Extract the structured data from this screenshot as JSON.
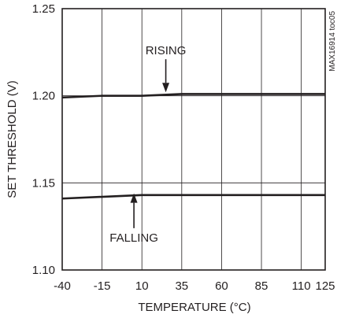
{
  "chart_data": {
    "type": "line",
    "xlabel": "TEMPERATURE (°C)",
    "ylabel": "SET THRESHOLD (V)",
    "xlim": [
      -40,
      125
    ],
    "ylim": [
      1.1,
      1.25
    ],
    "x_ticks": [
      "-40",
      "-15",
      "10",
      "35",
      "60",
      "85",
      "110",
      "125"
    ],
    "y_ticks": [
      "1.10",
      "1.15",
      "1.20",
      "1.25"
    ],
    "grid": true,
    "series": [
      {
        "name": "RISING",
        "x": [
          -40,
          -15,
          10,
          35,
          60,
          85,
          110,
          125
        ],
        "y": [
          1.199,
          1.2,
          1.2,
          1.201,
          1.201,
          1.201,
          1.201,
          1.201
        ]
      },
      {
        "name": "FALLING",
        "x": [
          -40,
          -15,
          10,
          35,
          60,
          85,
          110,
          125
        ],
        "y": [
          1.141,
          1.142,
          1.143,
          1.143,
          1.143,
          1.143,
          1.143,
          1.143
        ]
      }
    ],
    "annotations": [
      {
        "text": "RISING",
        "arrow_x": 25,
        "arrow_from_y": 1.221,
        "arrow_to_y": 1.202
      },
      {
        "text": "FALLING",
        "arrow_x": 5,
        "arrow_from_y": 1.124,
        "arrow_to_y": 1.144
      }
    ],
    "figure_id": "MAX16914 toc05"
  }
}
